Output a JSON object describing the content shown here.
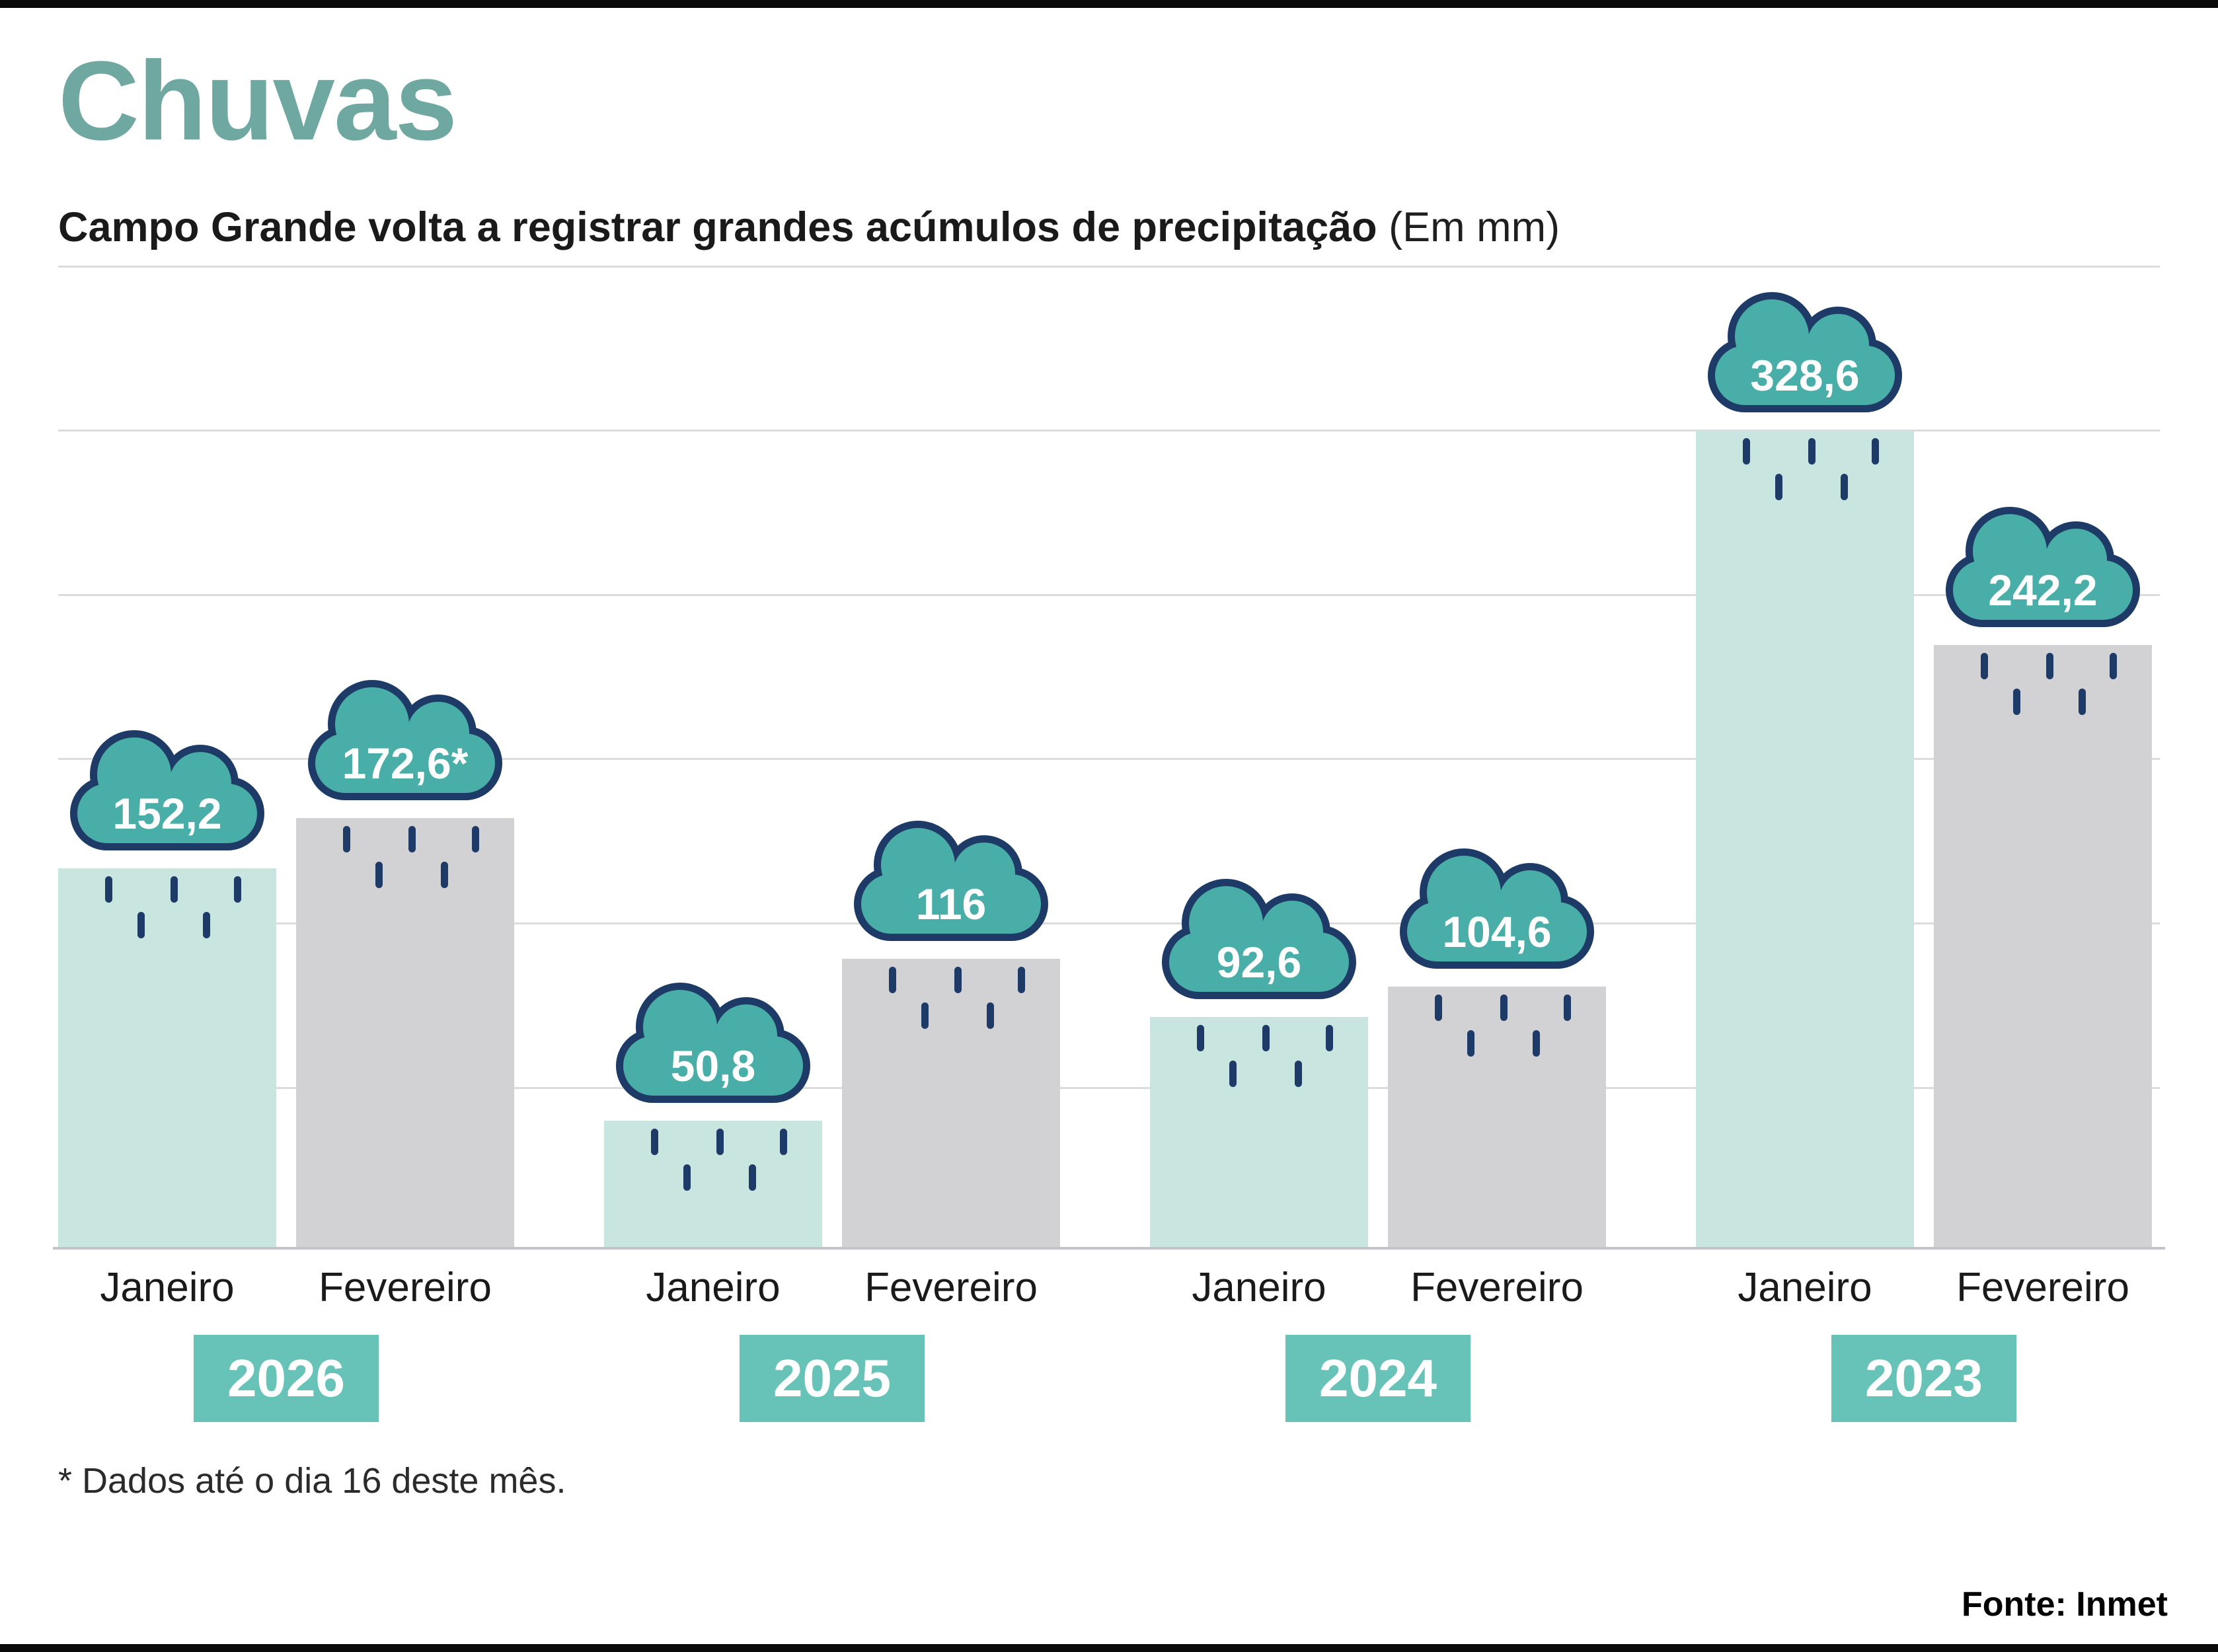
{
  "chart_data": {
    "type": "bar",
    "title": "Chuvas",
    "subtitle": "Campo Grande volta a registrar grandes acúmulos de precipitação",
    "unit_label": "(Em mm)",
    "unit": "mm",
    "grid": true,
    "gridline_count": 6,
    "ylim": [
      0,
      395
    ],
    "legend_position": "none",
    "value_labels": "inside cloud icons above each bar",
    "groups": [
      {
        "year": "2026",
        "bars": [
          {
            "month": "Janeiro",
            "value": 152.2,
            "display": "152,2",
            "series": "mint"
          },
          {
            "month": "Fevereiro",
            "value": 172.6,
            "display": "172,6*",
            "series": "gray"
          }
        ]
      },
      {
        "year": "2025",
        "bars": [
          {
            "month": "Janeiro",
            "value": 50.8,
            "display": "50,8",
            "series": "mint"
          },
          {
            "month": "Fevereiro",
            "value": 116,
            "display": "116",
            "series": "gray"
          }
        ]
      },
      {
        "year": "2024",
        "bars": [
          {
            "month": "Janeiro",
            "value": 92.6,
            "display": "92,6",
            "series": "mint"
          },
          {
            "month": "Fevereiro",
            "value": 104.6,
            "display": "104,6",
            "series": "gray"
          }
        ]
      },
      {
        "year": "2023",
        "bars": [
          {
            "month": "Janeiro",
            "value": 328.6,
            "display": "328,6",
            "series": "mint"
          },
          {
            "month": "Fevereiro",
            "value": 242.2,
            "display": "242,2",
            "series": "gray"
          }
        ]
      }
    ],
    "footnote": "* Dados até o dia 16 deste mês.",
    "source": "Fonte: Inmet",
    "icons": [
      "cloud-icon",
      "raindrop-icon"
    ],
    "colors": {
      "teal-title": "#6FA8A1",
      "cloud-fill": "#48AEA7",
      "navy": "#1E3A66",
      "mint-bar": "#C9E5E0",
      "gray-bar": "#D2D2D4",
      "badge": "#67C3B8",
      "grid": "#DCDCDC",
      "baseline": "#C4C4C8",
      "text-dark": "#1A1A1A",
      "bar-black": "#0A0A0A"
    }
  }
}
